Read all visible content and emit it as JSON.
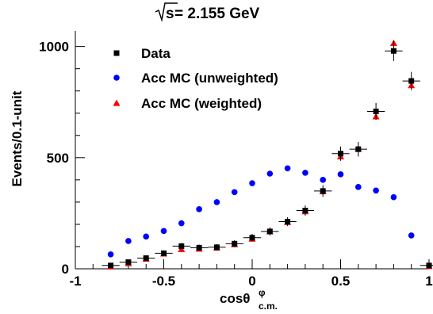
{
  "chart_data": {
    "type": "scatter",
    "title_prefix": "s",
    "title": " = 2.155 GeV",
    "xlabel": "cosθc.m.φ",
    "xlabel_base": "cosθ",
    "xlabel_sup": "φ",
    "xlabel_sub": "c.m.",
    "ylabel": "Events/0.1-unit",
    "xlim": [
      -1.0,
      1.0
    ],
    "ylim": [
      0,
      1070
    ],
    "x_ticks": [
      -1,
      -0.5,
      0,
      0.5,
      1
    ],
    "x_tick_labels": [
      "-1",
      "-0.5",
      "0",
      "0.5",
      "1"
    ],
    "y_ticks": [
      0,
      500,
      1000
    ],
    "y_tick_labels": [
      "0",
      "500",
      "1000"
    ],
    "grid": false,
    "legend_position": "top-left",
    "series": [
      {
        "name": "Data",
        "marker": "square",
        "color": "#000000",
        "x": [
          -0.8,
          -0.7,
          -0.6,
          -0.5,
          -0.4,
          -0.3,
          -0.2,
          -0.1,
          0.0,
          0.1,
          0.2,
          0.3,
          0.4,
          0.5,
          0.6,
          0.7,
          0.8,
          0.9,
          1.0
        ],
        "y": [
          15,
          30,
          48,
          70,
          102,
          95,
          97,
          113,
          140,
          168,
          212,
          262,
          350,
          518,
          538,
          708,
          980,
          845,
          15
        ],
        "yerr": [
          6,
          8,
          10,
          12,
          14,
          14,
          14,
          15,
          17,
          18,
          20,
          23,
          26,
          32,
          33,
          38,
          45,
          41,
          6
        ]
      },
      {
        "name": "Acc MC (unweighted)",
        "marker": "circle",
        "color": "#0000ff",
        "x": [
          -0.8,
          -0.7,
          -0.6,
          -0.5,
          -0.4,
          -0.3,
          -0.2,
          -0.1,
          0.0,
          0.1,
          0.2,
          0.3,
          0.4,
          0.5,
          0.6,
          0.7,
          0.8,
          0.9
        ],
        "y": [
          65,
          125,
          145,
          170,
          205,
          268,
          300,
          345,
          385,
          428,
          452,
          432,
          400,
          425,
          368,
          352,
          322,
          150
        ]
      },
      {
        "name": "Acc MC (weighted)",
        "marker": "triangle",
        "color": "#ff0000",
        "x": [
          -0.8,
          -0.7,
          -0.6,
          -0.5,
          -0.4,
          -0.3,
          -0.2,
          -0.1,
          0.0,
          0.1,
          0.2,
          0.3,
          0.4,
          0.5,
          0.6,
          0.7,
          0.8,
          0.9,
          1.0
        ],
        "y": [
          10,
          25,
          45,
          68,
          88,
          90,
          95,
          110,
          135,
          168,
          210,
          258,
          348,
          505,
          540,
          685,
          1015,
          825,
          12
        ]
      }
    ]
  }
}
